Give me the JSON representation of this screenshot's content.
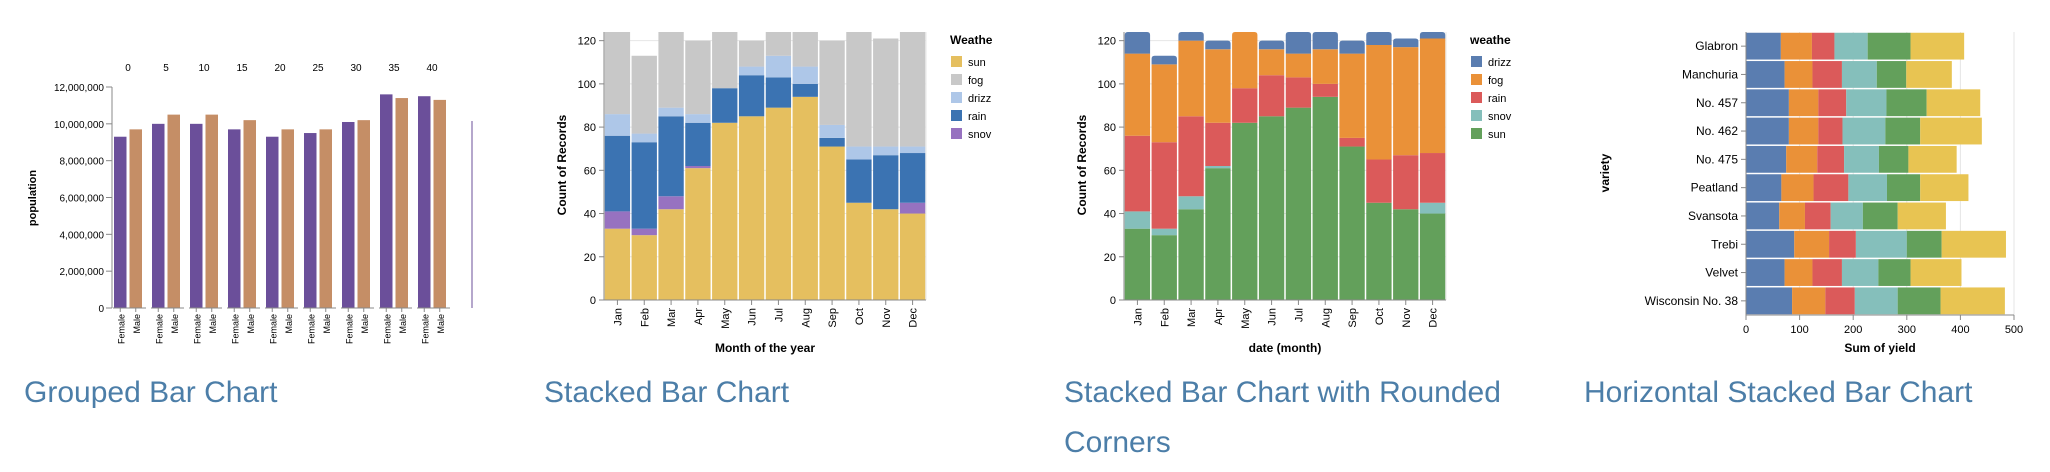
{
  "charts": [
    {
      "caption": "Grouped Bar Chart",
      "chart_data": {
        "type": "bar",
        "facet_title": "",
        "facets": [
          "0",
          "5",
          "10",
          "15",
          "20",
          "25",
          "30",
          "35",
          "40"
        ],
        "categories": [
          "Female",
          "Male"
        ],
        "values": [
          [
            9300000,
            9700000
          ],
          [
            10000000,
            10500000
          ],
          [
            10000000,
            10500000
          ],
          [
            9700000,
            10200000
          ],
          [
            9300000,
            9700000
          ],
          [
            9500000,
            9700000
          ],
          [
            10100000,
            10200000
          ],
          [
            11600000,
            11400000
          ],
          [
            11500000,
            11300000
          ]
        ],
        "ylabel": "population",
        "yticks": [
          "0",
          "2,000,000",
          "4,000,000",
          "6,000,000",
          "8,000,000",
          "10,000,000",
          "12,000,000"
        ],
        "ylim": [
          0,
          12000000
        ],
        "colors": {
          "Female": "#6b4f9a",
          "Male": "#c58e66"
        }
      }
    },
    {
      "caption": "Stacked Bar Chart",
      "chart_data": {
        "type": "bar",
        "stacked": true,
        "categories": [
          "Jan",
          "Feb",
          "Mar",
          "Apr",
          "May",
          "Jun",
          "Jul",
          "Aug",
          "Sep",
          "Oct",
          "Nov",
          "Dec"
        ],
        "series": [
          {
            "name": "sun",
            "color": "#e5bf5f",
            "values": [
              33,
              30,
              42,
              61,
              82,
              85,
              89,
              94,
              71,
              45,
              42,
              40
            ]
          },
          {
            "name": "snow",
            "color": "#9772c0",
            "values": [
              8,
              3,
              6,
              1,
              0,
              0,
              0,
              0,
              0,
              0,
              0,
              5
            ]
          },
          {
            "name": "rain",
            "color": "#3b73b2",
            "values": [
              35,
              40,
              37,
              20,
              16,
              19,
              14,
              6,
              4,
              20,
              25,
              23
            ]
          },
          {
            "name": "drizzle",
            "color": "#aec7e8",
            "values": [
              10,
              4,
              4,
              4,
              0,
              4,
              10,
              8,
              6,
              6,
              4,
              3
            ]
          },
          {
            "name": "fog",
            "color": "#c8c8c8",
            "values": [
              38,
              36,
              35,
              34,
              26,
              12,
              11,
              16,
              39,
              53,
              50,
              53
            ]
          }
        ],
        "legend_title": "Weathe",
        "legend": [
          "sun",
          "fog",
          "drizz",
          "rain",
          "snov"
        ],
        "xlabel": "Month of the year",
        "ylabel": "Count of Records",
        "yticks": [
          "0",
          "20",
          "40",
          "60",
          "80",
          "100",
          "120"
        ],
        "ylim": [
          0,
          124
        ]
      }
    },
    {
      "caption": "Stacked Bar Chart with Rounded Corners",
      "chart_data": {
        "type": "bar",
        "stacked": true,
        "rounded": true,
        "categories": [
          "Jan",
          "Feb",
          "Mar",
          "Apr",
          "May",
          "Jun",
          "Jul",
          "Aug",
          "Sep",
          "Oct",
          "Nov",
          "Dec"
        ],
        "series": [
          {
            "name": "sun",
            "color": "#63a05b",
            "values": [
              33,
              30,
              42,
              61,
              82,
              85,
              89,
              94,
              71,
              45,
              42,
              40
            ]
          },
          {
            "name": "snow",
            "color": "#85bfbb",
            "values": [
              8,
              3,
              6,
              1,
              0,
              0,
              0,
              0,
              0,
              0,
              0,
              5
            ]
          },
          {
            "name": "rain",
            "color": "#db5a5a",
            "values": [
              35,
              40,
              37,
              20,
              16,
              19,
              14,
              6,
              4,
              20,
              25,
              23
            ]
          },
          {
            "name": "fog",
            "color": "#ea9138",
            "values": [
              38,
              36,
              35,
              34,
              26,
              12,
              11,
              16,
              39,
              53,
              50,
              53
            ]
          },
          {
            "name": "drizzle",
            "color": "#5a7db0",
            "values": [
              10,
              4,
              4,
              4,
              0,
              4,
              10,
              8,
              6,
              6,
              4,
              3
            ]
          }
        ],
        "legend_title": "weathe",
        "legend": [
          "drizz",
          "fog",
          "rain",
          "snov",
          "sun"
        ],
        "xlabel": "date (month)",
        "ylabel": "Count of Records",
        "yticks": [
          "0",
          "20",
          "40",
          "60",
          "80",
          "100",
          "120"
        ],
        "ylim": [
          0,
          124
        ]
      }
    },
    {
      "caption": "Horizontal Stacked Bar Chart",
      "chart_data": {
        "type": "bar",
        "stacked": true,
        "orientation": "horizontal",
        "categories": [
          "Glabron",
          "Manchuria",
          "No. 457",
          "No. 462",
          "No. 475",
          "Peatland",
          "Svansota",
          "Trebi",
          "Velvet",
          "Wisconsin No. 38"
        ],
        "series": [
          {
            "color": "#5a7db0",
            "values": [
              65,
              72,
              80,
              80,
              75,
              66,
              62,
              90,
              72,
              86
            ]
          },
          {
            "color": "#ea9138",
            "values": [
              58,
              52,
              55,
              55,
              58,
              60,
              48,
              65,
              52,
              62
            ]
          },
          {
            "color": "#db5a5a",
            "values": [
              42,
              55,
              52,
              45,
              50,
              65,
              48,
              50,
              55,
              55
            ]
          },
          {
            "color": "#85bfbb",
            "values": [
              62,
              65,
              75,
              80,
              65,
              72,
              60,
              95,
              68,
              80
            ]
          },
          {
            "color": "#63a05b",
            "values": [
              80,
              55,
              75,
              65,
              55,
              62,
              65,
              65,
              60,
              80
            ]
          },
          {
            "color": "#e8c452",
            "values": [
              100,
              85,
              100,
              115,
              90,
              90,
              90,
              120,
              95,
              120
            ]
          }
        ],
        "xlabel": "Sum of yield",
        "ylabel": "variety",
        "xticks": [
          0,
          100,
          200,
          300,
          400,
          500
        ],
        "xlim": [
          0,
          500
        ]
      }
    }
  ]
}
